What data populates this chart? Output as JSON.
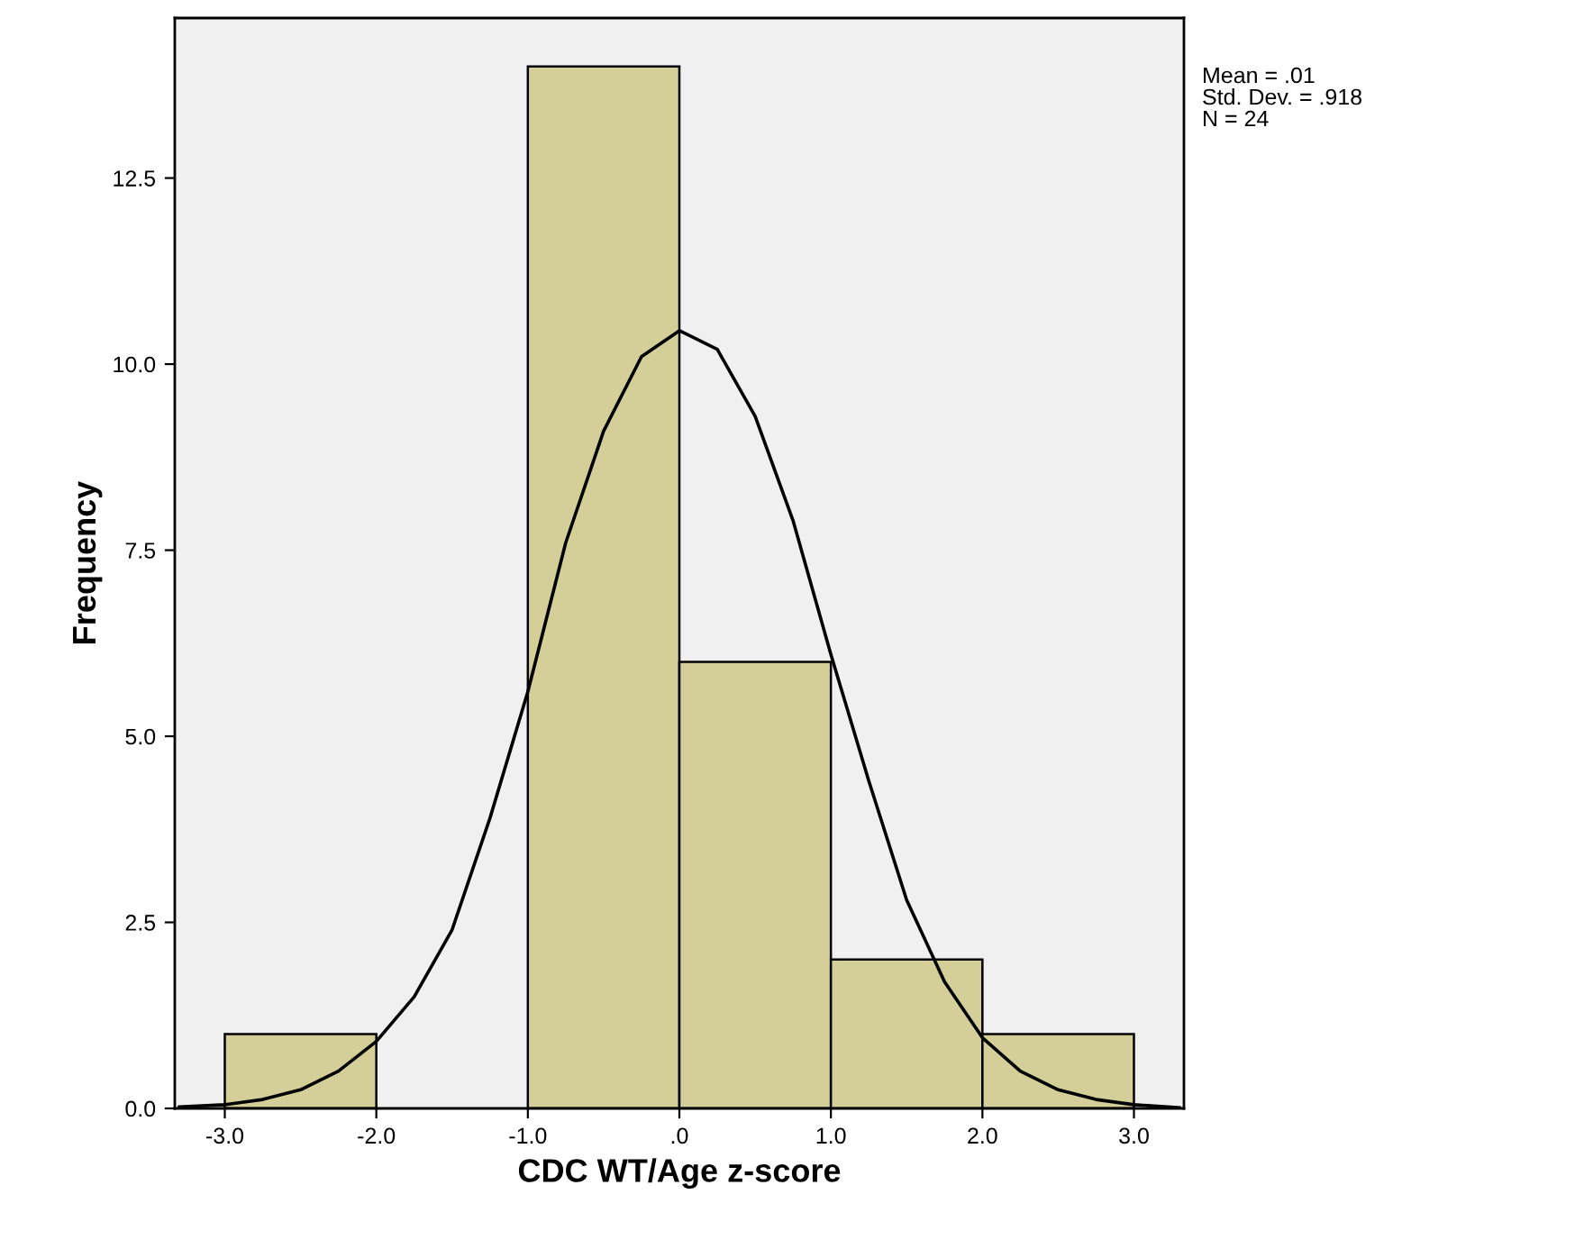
{
  "chart_data": {
    "type": "histogram",
    "xlabel": "CDC WT/Age z-score",
    "ylabel": "Frequency",
    "annotations": [
      "Mean = .01",
      "Std. Dev. = .918",
      "N = 24"
    ],
    "xlim": [
      -3.33,
      3.33
    ],
    "ylim": [
      0,
      14.65
    ],
    "xticks": [
      {
        "value": -3,
        "label": "-3.0"
      },
      {
        "value": -2,
        "label": "-2.0"
      },
      {
        "value": -1,
        "label": "-1.0"
      },
      {
        "value": 0,
        "label": ".0"
      },
      {
        "value": 1,
        "label": "1.0"
      },
      {
        "value": 2,
        "label": "2.0"
      },
      {
        "value": 3,
        "label": "3.0"
      }
    ],
    "yticks": [
      {
        "value": 0,
        "label": "0.0"
      },
      2.5,
      {
        "value": 5,
        "label": "5.0"
      },
      7.5,
      {
        "value": 10,
        "label": "10.0"
      },
      12.5
    ],
    "grid": false,
    "series": [
      {
        "color": "#d4cf98",
        "bins": [
          -3,
          -2,
          -1,
          0,
          1,
          2,
          3
        ],
        "values": [
          1,
          0,
          14,
          6,
          2,
          1
        ]
      },
      {
        "type": "line",
        "color": "#000000",
        "x": [
          -3.3,
          -3.0,
          -2.75,
          -2.5,
          -2.25,
          -2.0,
          -1.75,
          -1.5,
          -1.25,
          -1.0,
          -0.75,
          -0.5,
          -0.25,
          0,
          0.25,
          0.5,
          0.75,
          1.0,
          1.25,
          1.5,
          1.75,
          2.0,
          2.25,
          2.5,
          2.75,
          3.0,
          3.3
        ],
        "values": [
          0.02,
          0.05,
          0.12,
          0.25,
          0.5,
          0.9,
          1.5,
          2.4,
          3.9,
          5.6,
          7.6,
          9.1,
          10.1,
          10.45,
          10.2,
          9.3,
          7.9,
          6.1,
          4.4,
          2.8,
          1.7,
          0.95,
          0.5,
          0.25,
          0.12,
          0.05,
          0.01
        ]
      }
    ]
  }
}
